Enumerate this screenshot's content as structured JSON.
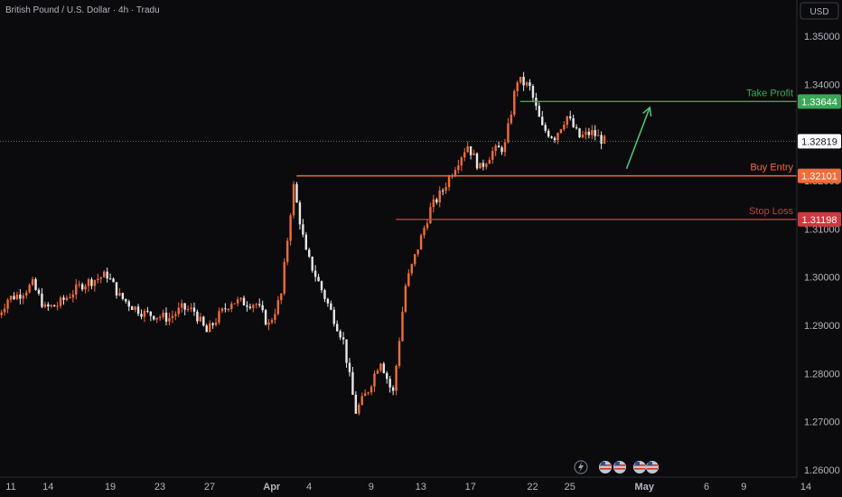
{
  "header": {
    "title": "British Pound / U.S. Dollar · 4h · Tradu"
  },
  "currency_button": {
    "label": "USD"
  },
  "colors": {
    "background": "#0b0b0d",
    "bull": "#f26b38",
    "bear": "#e8e8e8",
    "take_profit": "#3aa757",
    "buy_entry": "#f26b38",
    "stop_loss": "#d0373f",
    "arrow": "#4fbf7a",
    "axis_text": "#b2b5be"
  },
  "chart_data": {
    "type": "candlestick",
    "x_axis": {
      "ticks": [
        "11",
        "14",
        "19",
        "23",
        "27",
        "Apr",
        "4",
        "9",
        "13",
        "17",
        "22",
        "25",
        "May",
        "6",
        "9",
        "14"
      ]
    },
    "y_axis": {
      "ticks": [
        1.35,
        1.34,
        1.33,
        1.32,
        1.31,
        1.3,
        1.29,
        1.28,
        1.27,
        1.26
      ],
      "labels": [
        "1.35000",
        "1.34000",
        "1.32000",
        "1.31000",
        "1.30000",
        "1.29000",
        "1.28000",
        "1.27000",
        "1.26000"
      ],
      "range": [
        1.2585,
        1.3575
      ]
    },
    "current_price": {
      "value": 1.32819,
      "label": "1.32819"
    },
    "levels": [
      {
        "name": "Take Profit",
        "value": 1.33644,
        "label": "1.33644",
        "color": "#3aa757"
      },
      {
        "name": "Buy Entry",
        "value": 1.32101,
        "label": "1.32101",
        "color": "#f26b38"
      },
      {
        "name": "Stop Loss",
        "value": 1.31198,
        "label": "1.31198",
        "color": "#d0373f"
      }
    ],
    "close_path": [
      [
        "Mar 10",
        1.291
      ],
      [
        "Mar 11",
        1.2955
      ],
      [
        "Mar 12",
        1.2965
      ],
      [
        "Mar 13",
        1.2985
      ],
      [
        "Mar 14",
        1.2935
      ],
      [
        "Mar 15",
        1.2942
      ],
      [
        "Mar 17",
        1.2985
      ],
      [
        "Mar 18",
        1.2995
      ],
      [
        "Mar 19",
        1.3005
      ],
      [
        "Mar 20",
        1.296
      ],
      [
        "Mar 21",
        1.294
      ],
      [
        "Mar 22",
        1.2925
      ],
      [
        "Mar 24",
        1.2915
      ],
      [
        "Mar 25",
        1.2935
      ],
      [
        "Mar 26",
        1.293
      ],
      [
        "Mar 27",
        1.2885
      ],
      [
        "Mar 28",
        1.292
      ],
      [
        "Mar 29",
        1.295
      ],
      [
        "Mar 31",
        1.2945
      ],
      [
        "Apr 1",
        1.29
      ],
      [
        "Apr 2",
        1.296
      ],
      [
        "Apr 3",
        1.319
      ],
      [
        "Apr 4",
        1.305
      ],
      [
        "Apr 7",
        1.287
      ],
      [
        "Apr 8",
        1.272
      ],
      [
        "Apr 9",
        1.2765
      ],
      [
        "Apr 10",
        1.283
      ],
      [
        "Apr 11",
        1.2755
      ],
      [
        "Apr 12",
        1.298
      ],
      [
        "Apr 14",
        1.314
      ],
      [
        "Apr 15",
        1.318
      ],
      [
        "Apr 16",
        1.323
      ],
      [
        "Apr 17",
        1.3275
      ],
      [
        "Apr 18",
        1.3225
      ],
      [
        "Apr 19",
        1.326
      ],
      [
        "Apr 20",
        1.327
      ],
      [
        "Apr 21",
        1.341
      ],
      [
        "Apr 22",
        1.3395
      ],
      [
        "Apr 23",
        1.331
      ],
      [
        "Apr 24",
        1.329
      ],
      [
        "Apr 25",
        1.3335
      ],
      [
        "Apr 26",
        1.329
      ],
      [
        "Apr 27",
        1.33
      ],
      [
        "Apr 28",
        1.3282
      ]
    ],
    "projection_arrow": {
      "from": [
        "Apr 30",
        1.3225
      ],
      "to": [
        "May 1",
        1.3352
      ]
    }
  }
}
